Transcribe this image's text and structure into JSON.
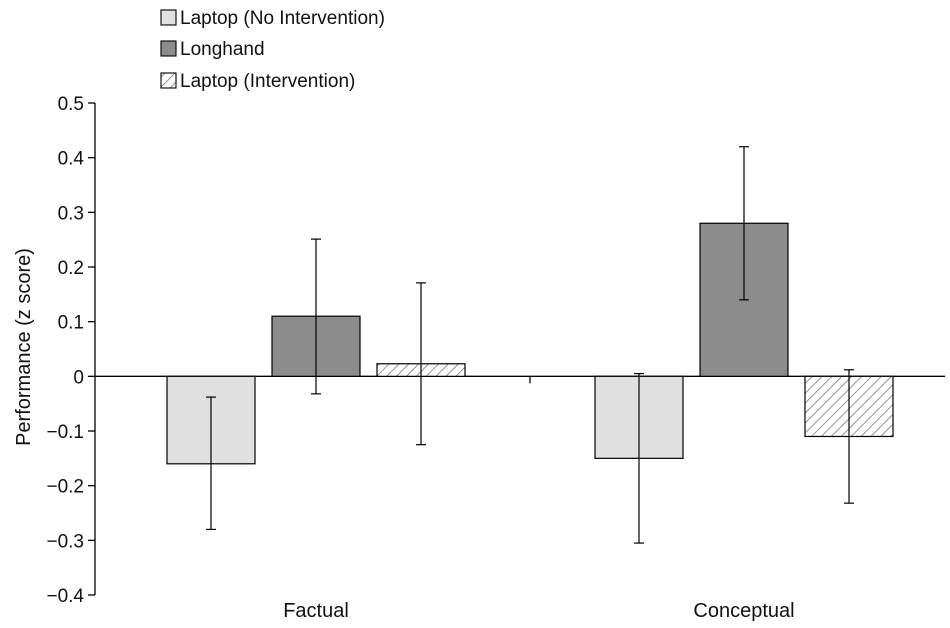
{
  "chart_data": {
    "type": "bar",
    "categories": [
      "Factual",
      "Conceptual"
    ],
    "ylabel": "Performance (z score)",
    "ylim": [
      -0.4,
      0.5
    ],
    "yticks": [
      "0.5",
      "0.4",
      "0.3",
      "0.2",
      "0.1",
      "0",
      "−0.1",
      "−0.2",
      "−0.3",
      "−0.4"
    ],
    "ytick_values": [
      0.5,
      0.4,
      0.3,
      0.2,
      0.1,
      0,
      -0.1,
      -0.2,
      -0.3,
      -0.4
    ],
    "grid": false,
    "legend_position": "top-left",
    "series": [
      {
        "name": "Laptop (No Intervention)",
        "values": [
          -0.16,
          -0.15
        ],
        "err_low": [
          -0.28,
          -0.305
        ],
        "err_high": [
          -0.038,
          0.005
        ],
        "color": "#e0e0e0",
        "pattern": "solid"
      },
      {
        "name": "Longhand",
        "values": [
          0.11,
          0.28
        ],
        "err_low": [
          -0.032,
          0.14
        ],
        "err_high": [
          0.251,
          0.42
        ],
        "color": "#8c8c8c",
        "pattern": "solid"
      },
      {
        "name": "Laptop (Intervention)",
        "values": [
          0.023,
          -0.11
        ],
        "err_low": [
          -0.125,
          -0.232
        ],
        "err_high": [
          0.171,
          0.012
        ],
        "color": "#ffffff",
        "pattern": "hatch"
      }
    ]
  }
}
